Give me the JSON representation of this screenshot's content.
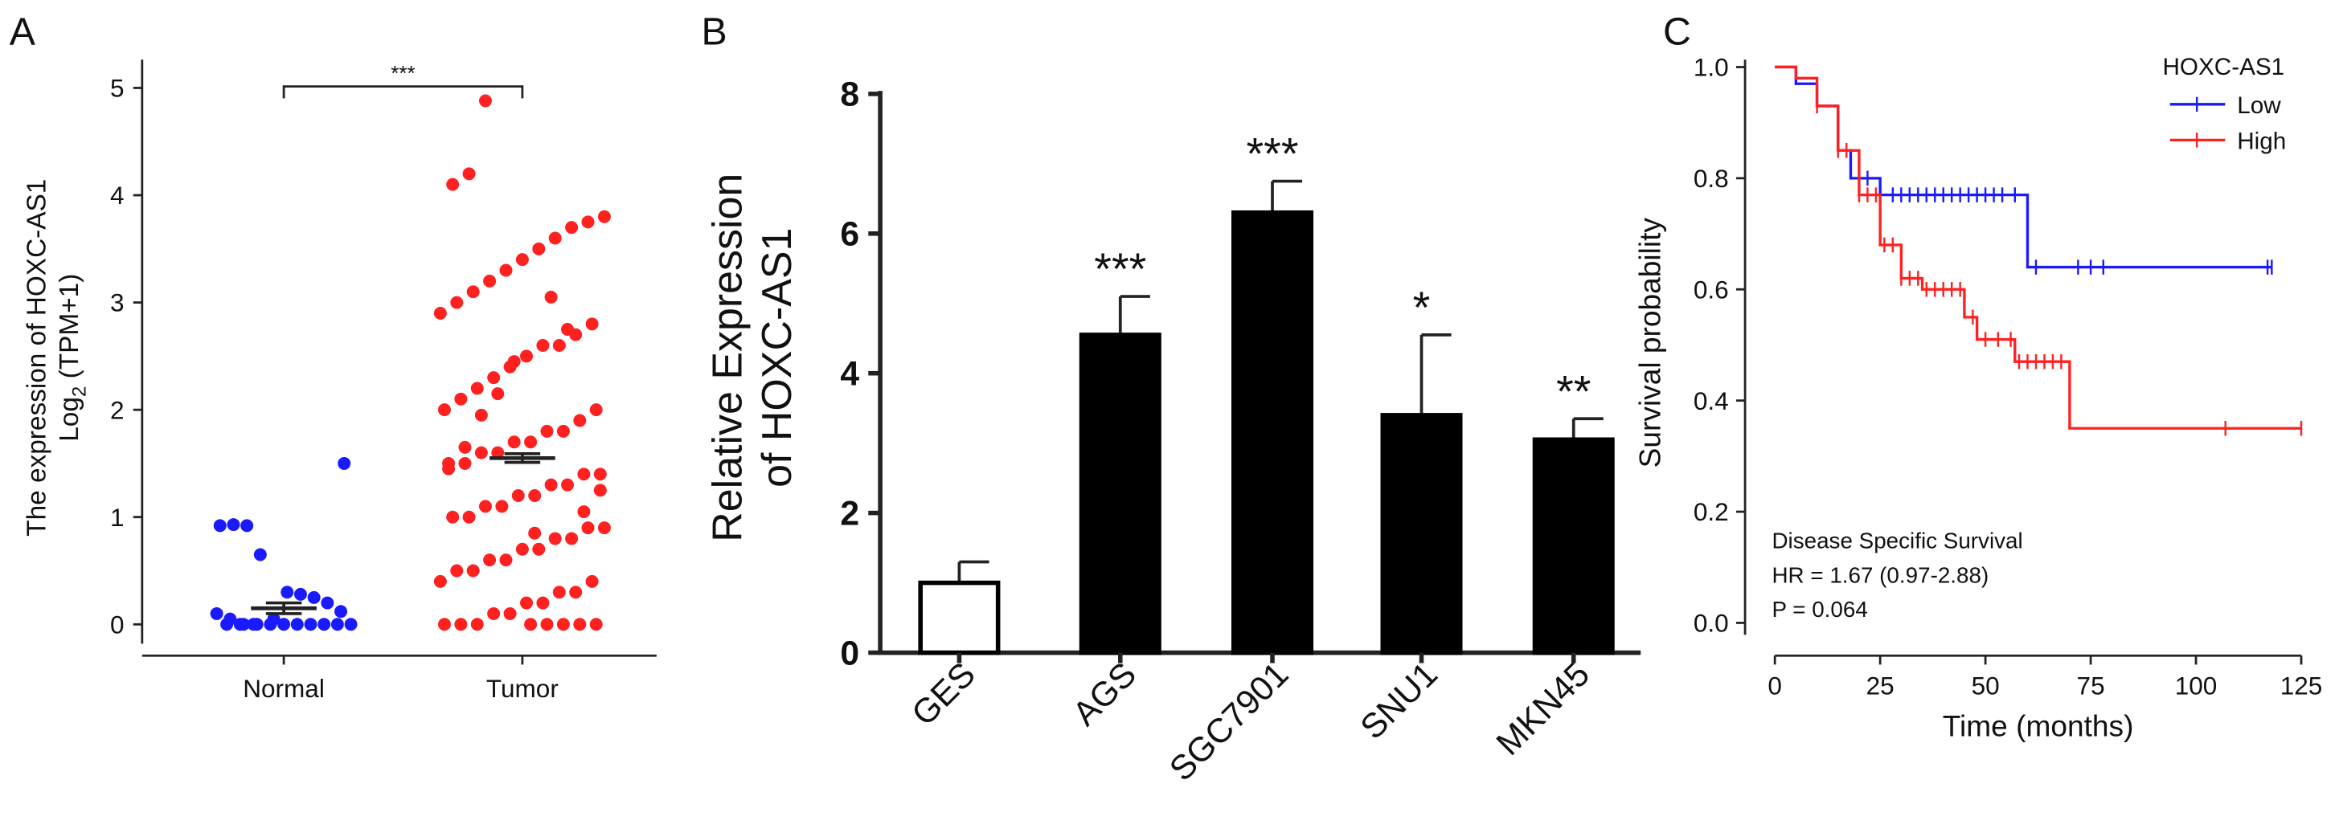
{
  "chart_data": [
    {
      "type": "scatter",
      "panel": "A",
      "ylabel": "The expression of HOXC-AS1",
      "ylabel_log": "Log",
      "ylabel_sub": "2",
      "ylabel_unit": "(TPM+1)",
      "categories": [
        "Normal",
        "Tumor"
      ],
      "series": [
        {
          "color": "#1a1aff",
          "mean": 0.15,
          "error": 0.05,
          "values": [
            0,
            0,
            0,
            0,
            0,
            0,
            0,
            0,
            0,
            0,
            0,
            0,
            0.05,
            0.1,
            0.12,
            0.2,
            0.25,
            0.28,
            0.3,
            0.05,
            0.65,
            0.92,
            0.93,
            0.92,
            1.5
          ]
        },
        {
          "color": "#ff2020",
          "mean": 1.55,
          "error": 0.04,
          "values": [
            4.88,
            4.2,
            4.1,
            3.8,
            3.75,
            3.7,
            3.6,
            3.5,
            3.4,
            3.3,
            3.2,
            3.1,
            3.0,
            2.9,
            2.8,
            2.7,
            2.6,
            2.6,
            2.5,
            2.4,
            2.3,
            2.2,
            2.1,
            2.0,
            2.0,
            1.9,
            1.8,
            1.8,
            1.7,
            1.7,
            1.6,
            1.6,
            1.5,
            1.5,
            1.4,
            1.4,
            1.3,
            1.3,
            1.2,
            1.2,
            1.1,
            1.1,
            1.0,
            1.0,
            0.9,
            0.9,
            0.8,
            0.8,
            0.7,
            0.7,
            0.6,
            0.6,
            0.5,
            0.5,
            0.4,
            0.4,
            0.3,
            0.3,
            0.2,
            0.2,
            0.1,
            0.1,
            0,
            0,
            0,
            0,
            0,
            0,
            0,
            0,
            2.45,
            2.15,
            1.95,
            1.65,
            1.45,
            1.25,
            1.05,
            2.75,
            3.05,
            0.85
          ]
        }
      ],
      "significance": "***",
      "ylim": [
        0,
        5
      ],
      "yticks": [
        0,
        1,
        2,
        3,
        4,
        5
      ]
    },
    {
      "type": "bar",
      "panel": "B",
      "ylabel": [
        "Relative Expression",
        "of HOXC-AS1"
      ],
      "categories": [
        "GES",
        "AGS",
        "SGC7901",
        "SNU1",
        "MKN45"
      ],
      "values": [
        1,
        4.55,
        6.3,
        3.4,
        3.05
      ],
      "errors": [
        0.3,
        0.55,
        0.45,
        1.15,
        0.3
      ],
      "annotations": [
        null,
        "***",
        "***",
        "*",
        "**"
      ],
      "colors": [
        "#ffffff",
        "#000000",
        "#000000",
        "#000000",
        "#000000"
      ],
      "ylim": [
        0,
        8
      ],
      "yticks": [
        0,
        2,
        4,
        6,
        8
      ]
    },
    {
      "type": "survival",
      "panel": "C",
      "xlabel": "Time (months)",
      "ylabel": "Survival probability",
      "legend_title": "HOXC-AS1",
      "legend": "top-right",
      "series": [
        {
          "name": "Low",
          "color": "#1a1aff",
          "x": [
            0,
            5,
            10,
            15,
            18,
            25,
            60,
            118
          ],
          "values": [
            1,
            0.97,
            0.93,
            0.85,
            0.8,
            0.77,
            0.64,
            0.64
          ],
          "censor_x": [
            20,
            22,
            25,
            28,
            30,
            32,
            34,
            36,
            38,
            40,
            42,
            44,
            46,
            48,
            50,
            52,
            54,
            57,
            62,
            72,
            75,
            78,
            117,
            118
          ]
        },
        {
          "name": "High",
          "color": "#ff2020",
          "x": [
            0,
            5,
            10,
            15,
            20,
            25,
            30,
            35,
            45,
            48,
            57,
            70,
            125
          ],
          "values": [
            1,
            0.98,
            0.93,
            0.85,
            0.77,
            0.68,
            0.62,
            0.6,
            0.55,
            0.51,
            0.47,
            0.35,
            0.35
          ],
          "censor_x": [
            10,
            15,
            17,
            20,
            22,
            24,
            26,
            28,
            30,
            32,
            34,
            36,
            38,
            40,
            42,
            44,
            47,
            50,
            53,
            56,
            58,
            60,
            62,
            64,
            66,
            68,
            107,
            125
          ]
        }
      ],
      "annotations": [
        "Disease Specific Survival",
        "HR = 1.67 (0.97-2.88)",
        "P = 0.064"
      ],
      "xlim": [
        0,
        125
      ],
      "xticks": [
        0,
        25,
        50,
        75,
        100,
        125
      ],
      "ylim": [
        0,
        1
      ],
      "yticks": [
        {
          "value": 0,
          "label": "0.0"
        },
        {
          "value": 0.2,
          "label": "0.2"
        },
        {
          "value": 0.4,
          "label": "0.4"
        },
        {
          "value": 0.6,
          "label": "0.6"
        },
        {
          "value": 0.8,
          "label": "0.8"
        },
        {
          "value": 1,
          "label": "1.0"
        }
      ]
    }
  ]
}
